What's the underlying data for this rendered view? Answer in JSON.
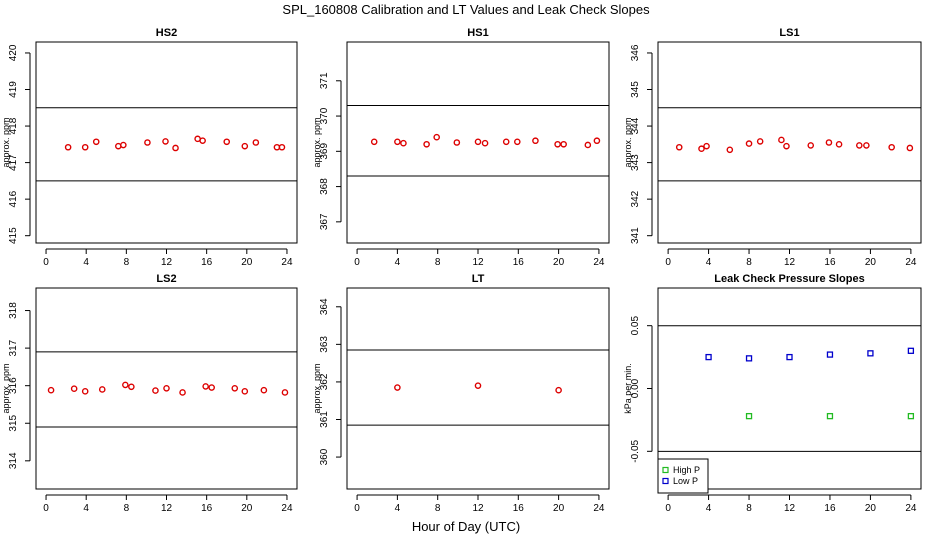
{
  "figure": {
    "title": "SPL_160808  Calibration and LT Values and Leak Check Slopes",
    "xlabel": "Hour of Day (UTC)"
  },
  "chart_data": [
    {
      "type": "scatter",
      "title": "HS2",
      "ylabel": "approx. ppm",
      "xlim": [
        -1,
        25
      ],
      "ylim": [
        414.8,
        420.3
      ],
      "xticks": [
        0,
        4,
        8,
        12,
        16,
        20,
        24
      ],
      "yticks": [
        415,
        416,
        417,
        418,
        419,
        420
      ],
      "hlines": [
        416.5,
        418.5
      ],
      "marker": "circle",
      "color": "#dd0000",
      "points": [
        [
          2.2,
          417.42
        ],
        [
          3.9,
          417.42
        ],
        [
          5.0,
          417.57
        ],
        [
          7.2,
          417.45
        ],
        [
          7.7,
          417.48
        ],
        [
          10.1,
          417.55
        ],
        [
          11.9,
          417.58
        ],
        [
          12.9,
          417.4
        ],
        [
          15.1,
          417.65
        ],
        [
          15.6,
          417.6
        ],
        [
          18.0,
          417.57
        ],
        [
          19.8,
          417.45
        ],
        [
          20.9,
          417.55
        ],
        [
          23.0,
          417.42
        ],
        [
          23.5,
          417.42
        ]
      ]
    },
    {
      "type": "scatter",
      "title": "HS1",
      "ylabel": "approx. ppm",
      "xlim": [
        -1,
        25
      ],
      "ylim": [
        366.4,
        372.1
      ],
      "xticks": [
        0,
        4,
        8,
        12,
        16,
        20,
        24
      ],
      "yticks": [
        367,
        368,
        369,
        370,
        371
      ],
      "hlines": [
        368.3,
        370.3
      ],
      "marker": "circle",
      "color": "#dd0000",
      "points": [
        [
          1.7,
          369.27
        ],
        [
          4.0,
          369.27
        ],
        [
          4.6,
          369.23
        ],
        [
          6.9,
          369.2
        ],
        [
          7.9,
          369.4
        ],
        [
          9.9,
          369.25
        ],
        [
          12.0,
          369.27
        ],
        [
          12.7,
          369.23
        ],
        [
          14.8,
          369.27
        ],
        [
          15.9,
          369.27
        ],
        [
          17.7,
          369.3
        ],
        [
          19.9,
          369.2
        ],
        [
          20.5,
          369.2
        ],
        [
          22.9,
          369.18
        ],
        [
          23.8,
          369.3
        ]
      ]
    },
    {
      "type": "scatter",
      "title": "LS1",
      "ylabel": "approx. ppm",
      "xlim": [
        -1,
        25
      ],
      "ylim": [
        340.8,
        346.3
      ],
      "xticks": [
        0,
        4,
        8,
        12,
        16,
        20,
        24
      ],
      "yticks": [
        341,
        342,
        343,
        344,
        345,
        346
      ],
      "hlines": [
        342.5,
        344.5
      ],
      "marker": "circle",
      "color": "#dd0000",
      "points": [
        [
          1.1,
          343.42
        ],
        [
          3.3,
          343.38
        ],
        [
          3.8,
          343.45
        ],
        [
          6.1,
          343.35
        ],
        [
          8.0,
          343.52
        ],
        [
          9.1,
          343.58
        ],
        [
          11.2,
          343.62
        ],
        [
          11.7,
          343.45
        ],
        [
          14.1,
          343.47
        ],
        [
          15.9,
          343.55
        ],
        [
          16.9,
          343.5
        ],
        [
          18.9,
          343.47
        ],
        [
          19.6,
          343.47
        ],
        [
          22.1,
          343.42
        ],
        [
          23.9,
          343.4
        ]
      ]
    },
    {
      "type": "scatter",
      "title": "LS2",
      "ylabel": "approx. ppm",
      "xlim": [
        -1,
        25
      ],
      "ylim": [
        313.25,
        318.6
      ],
      "xticks": [
        0,
        4,
        8,
        12,
        16,
        20,
        24
      ],
      "yticks": [
        314,
        315,
        316,
        317,
        318
      ],
      "hlines": [
        314.9,
        316.9
      ],
      "marker": "circle",
      "color": "#dd0000",
      "points": [
        [
          0.5,
          315.88
        ],
        [
          2.8,
          315.92
        ],
        [
          3.9,
          315.85
        ],
        [
          5.6,
          315.9
        ],
        [
          7.9,
          316.02
        ],
        [
          8.5,
          315.97
        ],
        [
          10.9,
          315.87
        ],
        [
          12.0,
          315.93
        ],
        [
          13.6,
          315.82
        ],
        [
          15.9,
          315.98
        ],
        [
          16.5,
          315.95
        ],
        [
          18.8,
          315.93
        ],
        [
          19.8,
          315.85
        ],
        [
          21.7,
          315.88
        ],
        [
          23.8,
          315.82
        ]
      ]
    },
    {
      "type": "scatter",
      "title": "LT",
      "ylabel": "approx. ppm",
      "xlim": [
        -1,
        25
      ],
      "ylim": [
        359.15,
        364.5
      ],
      "xticks": [
        0,
        4,
        8,
        12,
        16,
        20,
        24
      ],
      "yticks": [
        360,
        361,
        362,
        363,
        364
      ],
      "hlines": [
        360.85,
        362.85
      ],
      "marker": "circle",
      "color": "#dd0000",
      "points": [
        [
          4.0,
          361.85
        ],
        [
          12.0,
          361.9
        ],
        [
          20.0,
          361.78
        ]
      ]
    },
    {
      "type": "scatter",
      "title": "Leak Check Pressure Slopes",
      "ylabel": "kPa per min.",
      "xlim": [
        -1,
        25
      ],
      "ylim": [
        -0.08,
        0.08
      ],
      "xticks": [
        0,
        4,
        8,
        12,
        16,
        20,
        24
      ],
      "yticks": [
        -0.05,
        0.0,
        0.05
      ],
      "ytick_labels": [
        "-0.05",
        "0.00",
        "0.05"
      ],
      "hlines": [
        -0.05,
        0.05
      ],
      "marker": "square",
      "series": [
        {
          "name": "High P",
          "color": "#22bb22",
          "points": [
            [
              8,
              -0.022
            ],
            [
              16,
              -0.022
            ],
            [
              24,
              -0.022
            ]
          ]
        },
        {
          "name": "Low P",
          "color": "#0000cc",
          "points": [
            [
              4,
              0.025
            ],
            [
              8,
              0.024
            ],
            [
              12,
              0.025
            ],
            [
              16,
              0.027
            ],
            [
              20,
              0.028
            ],
            [
              24,
              0.03
            ]
          ]
        }
      ],
      "legend": {
        "position": "bottom-left"
      }
    }
  ]
}
